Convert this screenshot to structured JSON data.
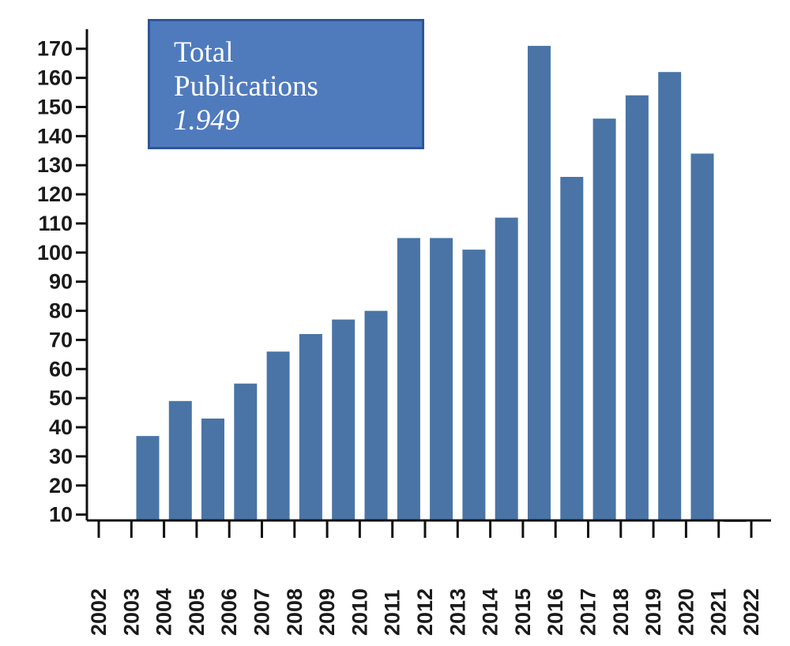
{
  "chart_data": {
    "type": "bar",
    "title": "",
    "xlabel": "",
    "ylabel": "",
    "categories": [
      "2002",
      "2003",
      "2004",
      "2005",
      "2006",
      "2007",
      "2008",
      "2009",
      "2010",
      "2011",
      "2012",
      "2013",
      "2014",
      "2015",
      "2016",
      "2017",
      "2018",
      "2019",
      "2020",
      "2021",
      "2022"
    ],
    "values": [
      null,
      37,
      49,
      43,
      55,
      66,
      72,
      77,
      80,
      105,
      105,
      101,
      112,
      171,
      126,
      146,
      154,
      162,
      134,
      8,
      null
    ],
    "y_ticks": [
      "10",
      "20",
      "30",
      "40",
      "50",
      "60",
      "70",
      "80",
      "90",
      "100",
      "110",
      "120",
      "130",
      "140",
      "150",
      "160",
      "170"
    ],
    "ylim": [
      8,
      174
    ],
    "grid": false,
    "bar_color": "#4a74a6",
    "annotation": {
      "title_line1": "Total",
      "title_line2": "Publications",
      "value": "1.949",
      "box_color": "#4f7bbd",
      "border_color": "#2f5597"
    }
  }
}
